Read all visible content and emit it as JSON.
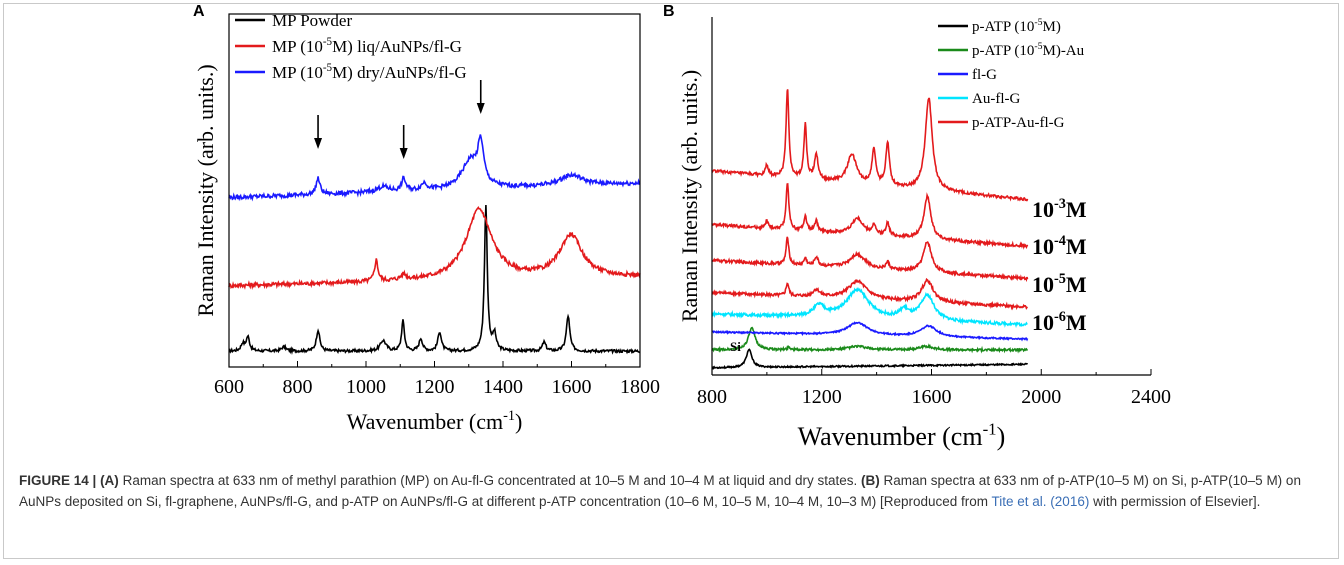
{
  "caption": {
    "figure_label": "FIGURE 14 |",
    "part_a_label": "(A)",
    "part_a_text": "Raman spectra at 633 nm of methyl parathion (MP) on Au-fl-G concentrated at 10–5 M and 10–4 M at liquid and dry states.",
    "part_b_label": "(B)",
    "part_b_text": "Raman spectra at 633 nm of p-ATP(10–5 M) on Si, p-ATP(10–5 M) on AuNPs deposited on Si, fl-graphene, AuNPs/fl-G, and p-ATP on AuNPs/fl-G at different p-ATP concentration (10–6 M, 10–5 M, 10–4 M, 10–3 M) [Reproduced from",
    "reference_link": "Tite et al. (2016)",
    "reference_tail": "with permission of Elsevier]."
  },
  "chart_data": [
    {
      "panel": "A",
      "type": "line",
      "xlabel": "Wavenumber (cm",
      "xlabel_sup": "-1",
      "xlabel_end": ")",
      "ylabel": "Raman Intensity (arb. units.)",
      "xlim": [
        600,
        1800
      ],
      "x_ticks": [
        600,
        800,
        1000,
        1200,
        1400,
        1600,
        1800
      ],
      "legend_position": "top-left",
      "arrows_at": [
        860,
        1110,
        1335
      ],
      "series": [
        {
          "name": "MP Powder",
          "color": "#000000",
          "baseline": 0.045,
          "noise": 0.004,
          "peaks": [
            [
              640,
              0.02,
              6
            ],
            [
              655,
              0.04,
              6
            ],
            [
              760,
              0.012,
              8
            ],
            [
              860,
              0.06,
              6
            ],
            [
              1050,
              0.03,
              10
            ],
            [
              1108,
              0.085,
              5
            ],
            [
              1160,
              0.035,
              6
            ],
            [
              1215,
              0.055,
              6
            ],
            [
              1350,
              0.41,
              5
            ],
            [
              1375,
              0.045,
              6
            ],
            [
              1520,
              0.025,
              6
            ],
            [
              1590,
              0.1,
              6
            ]
          ]
        },
        {
          "name_pre": "MP (10",
          "name_sup": "-5",
          "name_post": "M) liq/AuNPs/fl-G",
          "color": "#e31a1c",
          "baseline": 0.23,
          "slope": 0.025,
          "noise": 0.006,
          "peaks": [
            [
              1030,
              0.06,
              6
            ],
            [
              1110,
              0.015,
              10
            ],
            [
              1330,
              0.2,
              45
            ],
            [
              1598,
              0.12,
              40
            ]
          ]
        },
        {
          "name_pre": "MP (10",
          "name_sup": "-5",
          "name_post": "M) dry/AuNPs/fl-G",
          "color": "#1a1aff",
          "baseline": 0.48,
          "slope": 0.04,
          "noise": 0.006,
          "peaks": [
            [
              860,
              0.045,
              7
            ],
            [
              1050,
              0.015,
              20
            ],
            [
              1110,
              0.035,
              7
            ],
            [
              1170,
              0.02,
              10
            ],
            [
              1305,
              0.08,
              30
            ],
            [
              1335,
              0.11,
              10
            ],
            [
              1600,
              0.03,
              40
            ]
          ]
        }
      ]
    },
    {
      "panel": "B",
      "type": "line",
      "xlabel": "Wavenumber (cm",
      "xlabel_sup": "-1",
      "xlabel_end": ")",
      "ylabel": "Raman Intensity (arb. units.)",
      "xlim": [
        800,
        2400
      ],
      "x_ticks": [
        800,
        1200,
        1600,
        2000,
        2400
      ],
      "legend_position": "top-right",
      "si_label": "Si",
      "concentration_labels": [
        {
          "pre": "10",
          "sup": "-3",
          "post": "M"
        },
        {
          "pre": "10",
          "sup": "-4",
          "post": "M"
        },
        {
          "pre": "10",
          "sup": "-5",
          "post": "M"
        },
        {
          "pre": "10",
          "sup": "-6",
          "post": "M"
        }
      ],
      "legend": [
        {
          "name_pre": "p-ATP (10",
          "name_sup": "-5",
          "name_post": "M)",
          "color": "#000000"
        },
        {
          "name_pre": "p-ATP (10",
          "name_sup": "-5",
          "name_post": "M)-Au",
          "color": "#1a8a1a"
        },
        {
          "name_pre": "fl-G",
          "name_sup": "",
          "name_post": "",
          "color": "#1a1aff"
        },
        {
          "name_pre": "Au-fl-G",
          "name_sup": "",
          "name_post": "",
          "color": "#00e5ff"
        },
        {
          "name_pre": "p-ATP-Au-fl-G",
          "name_sup": "",
          "name_post": "",
          "color": "#e31a1c"
        }
      ],
      "series": [
        {
          "color": "#000000",
          "baseline": 0.02,
          "slope": 0.01,
          "noise": 0.002,
          "peaks": [
            [
              935,
              0.05,
              12
            ]
          ]
        },
        {
          "color": "#1a8a1a",
          "baseline": 0.07,
          "slope": 0.0,
          "noise": 0.003,
          "peaks": [
            [
              945,
              0.06,
              15
            ],
            [
              1080,
              0.008,
              6
            ],
            [
              1330,
              0.01,
              40
            ],
            [
              1580,
              0.01,
              30
            ]
          ]
        },
        {
          "color": "#1a1aff",
          "baseline": 0.12,
          "slope": -0.02,
          "noise": 0.002,
          "peaks": [
            [
              1330,
              0.035,
              45
            ],
            [
              1590,
              0.03,
              35
            ]
          ]
        },
        {
          "color": "#00e5ff",
          "baseline": 0.17,
          "slope": -0.03,
          "noise": 0.004,
          "peaks": [
            [
              1190,
              0.03,
              25
            ],
            [
              1330,
              0.08,
              50
            ],
            [
              1500,
              0.025,
              20
            ],
            [
              1585,
              0.07,
              30
            ]
          ]
        },
        {
          "color": "#e31a1c",
          "baseline": 0.23,
          "slope": -0.04,
          "noise": 0.004,
          "peaks": [
            [
              1075,
              0.035,
              6
            ],
            [
              1180,
              0.02,
              15
            ],
            [
              1330,
              0.05,
              40
            ],
            [
              1585,
              0.06,
              25
            ]
          ]
        },
        {
          "color": "#e31a1c",
          "baseline": 0.32,
          "slope": -0.05,
          "noise": 0.004,
          "peaks": [
            [
              1075,
              0.075,
              6
            ],
            [
              1140,
              0.02,
              6
            ],
            [
              1180,
              0.025,
              8
            ],
            [
              1330,
              0.04,
              35
            ],
            [
              1440,
              0.02,
              8
            ],
            [
              1585,
              0.085,
              18
            ]
          ]
        },
        {
          "color": "#e31a1c",
          "baseline": 0.42,
          "slope": -0.06,
          "noise": 0.004,
          "peaks": [
            [
              1000,
              0.02,
              6
            ],
            [
              1075,
              0.13,
              6
            ],
            [
              1140,
              0.04,
              6
            ],
            [
              1180,
              0.03,
              6
            ],
            [
              1330,
              0.045,
              25
            ],
            [
              1390,
              0.025,
              8
            ],
            [
              1440,
              0.035,
              8
            ],
            [
              1585,
              0.12,
              15
            ]
          ]
        },
        {
          "color": "#e31a1c",
          "baseline": 0.57,
          "slope": -0.08,
          "noise": 0.004,
          "peaks": [
            [
              1000,
              0.03,
              6
            ],
            [
              1075,
              0.25,
              6
            ],
            [
              1140,
              0.15,
              6
            ],
            [
              1180,
              0.07,
              8
            ],
            [
              1310,
              0.08,
              20
            ],
            [
              1390,
              0.1,
              8
            ],
            [
              1440,
              0.12,
              8
            ],
            [
              1590,
              0.26,
              15
            ]
          ]
        }
      ]
    }
  ]
}
